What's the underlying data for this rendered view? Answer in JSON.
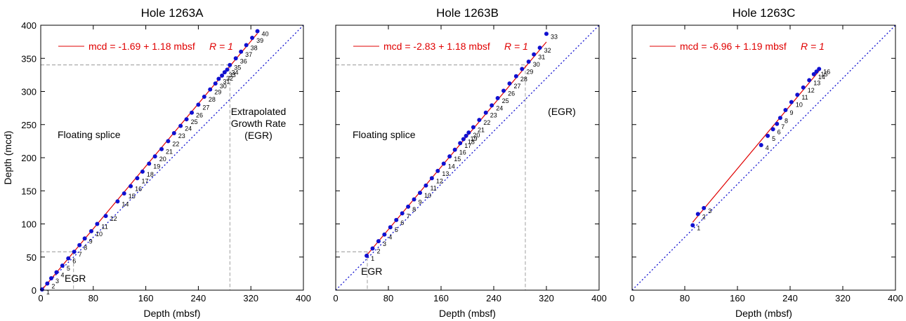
{
  "colors": {
    "fit_line": "#e00000",
    "points": "#1010d0",
    "egr_line": "#1010d0",
    "guide": "#888888",
    "equation": "#e00000"
  },
  "y_axis_label": "Depth (mcd)",
  "chart_data": [
    {
      "type": "scatter",
      "title": "Hole 1263A",
      "xlabel": "Depth (mbsf)",
      "xlim": [
        0,
        400
      ],
      "ylim": [
        0,
        400
      ],
      "xticks": [
        "0",
        "80",
        "160",
        "240",
        "320",
        "400"
      ],
      "yticks": [
        "0",
        "50",
        "100",
        "150",
        "200",
        "250",
        "300",
        "350",
        "400"
      ],
      "equation": "mcd = -1.69 + 1.18 mbsf",
      "r_label": "R = 1",
      "fit": {
        "intercept": -1.69,
        "slope": 1.18
      },
      "egr_line": {
        "intercept": 0,
        "slope": 1
      },
      "annotations": {
        "splice": "Floating splice",
        "egr_low": "EGR",
        "egr_high": [
          "Extrapolated",
          "Growth Rate",
          "(EGR)"
        ]
      },
      "guides": [
        {
          "x": 50,
          "y": 58
        },
        {
          "x": 288,
          "y": 340
        }
      ],
      "points": [
        {
          "x": 2,
          "y": 1,
          "label": "1"
        },
        {
          "x": 10,
          "y": 10,
          "label": "2"
        },
        {
          "x": 16,
          "y": 18,
          "label": "3"
        },
        {
          "x": 24,
          "y": 27,
          "label": "4"
        },
        {
          "x": 33,
          "y": 37,
          "label": "5"
        },
        {
          "x": 42,
          "y": 48,
          "label": "6"
        },
        {
          "x": 51,
          "y": 58,
          "label": "7"
        },
        {
          "x": 59,
          "y": 68,
          "label": "8"
        },
        {
          "x": 67,
          "y": 78,
          "label": "9"
        },
        {
          "x": 77,
          "y": 89,
          "label": "10"
        },
        {
          "x": 86,
          "y": 100,
          "label": "11"
        },
        {
          "x": 99,
          "y": 112,
          "label": "12"
        },
        {
          "x": 117,
          "y": 134,
          "label": "14"
        },
        {
          "x": 127,
          "y": 146,
          "label": "15"
        },
        {
          "x": 137,
          "y": 157,
          "label": "16"
        },
        {
          "x": 147,
          "y": 169,
          "label": "17"
        },
        {
          "x": 155,
          "y": 179,
          "label": "18"
        },
        {
          "x": 165,
          "y": 191,
          "label": "19"
        },
        {
          "x": 174,
          "y": 202,
          "label": "20"
        },
        {
          "x": 184,
          "y": 213,
          "label": "21"
        },
        {
          "x": 194,
          "y": 225,
          "label": "22"
        },
        {
          "x": 203,
          "y": 237,
          "label": "23"
        },
        {
          "x": 213,
          "y": 248,
          "label": "24"
        },
        {
          "x": 222,
          "y": 258,
          "label": "25"
        },
        {
          "x": 230,
          "y": 268,
          "label": "26"
        },
        {
          "x": 240,
          "y": 280,
          "label": "27"
        },
        {
          "x": 249,
          "y": 292,
          "label": "28"
        },
        {
          "x": 258,
          "y": 303,
          "label": "29"
        },
        {
          "x": 266,
          "y": 312,
          "label": "30"
        },
        {
          "x": 271,
          "y": 319,
          "label": "31"
        },
        {
          "x": 276,
          "y": 324,
          "label": "32"
        },
        {
          "x": 280,
          "y": 329,
          "label": "33"
        },
        {
          "x": 284,
          "y": 333,
          "label": "34"
        },
        {
          "x": 288,
          "y": 340,
          "label": "35"
        },
        {
          "x": 297,
          "y": 350,
          "label": "36"
        },
        {
          "x": 305,
          "y": 360,
          "label": "37"
        },
        {
          "x": 313,
          "y": 370,
          "label": "38"
        },
        {
          "x": 322,
          "y": 381,
          "label": "39"
        },
        {
          "x": 330,
          "y": 391,
          "label": "40"
        }
      ]
    },
    {
      "type": "scatter",
      "title": "Hole 1263B",
      "xlabel": "Depth (mbsf)",
      "xlim": [
        0,
        400
      ],
      "ylim": [
        0,
        400
      ],
      "xticks": [
        "0",
        "80",
        "160",
        "240",
        "320",
        "400"
      ],
      "yticks": [],
      "equation": "mcd = -2.83 + 1.18 mbsf",
      "r_label": "R = 1",
      "fit": {
        "intercept": -2.83,
        "slope": 1.18
      },
      "egr_line": {
        "intercept": 0,
        "slope": 1
      },
      "annotations": {
        "splice": "Floating splice",
        "egr_low": "EGR",
        "egr_high": [
          "(EGR)"
        ]
      },
      "guides": [
        {
          "x": 48,
          "y": 58
        },
        {
          "x": 288,
          "y": 340
        }
      ],
      "points": [
        {
          "x": 47,
          "y": 52,
          "label": "1"
        },
        {
          "x": 56,
          "y": 63,
          "label": "2"
        },
        {
          "x": 65,
          "y": 74,
          "label": "3"
        },
        {
          "x": 74,
          "y": 84,
          "label": "4"
        },
        {
          "x": 83,
          "y": 95,
          "label": "5"
        },
        {
          "x": 92,
          "y": 106,
          "label": "6"
        },
        {
          "x": 101,
          "y": 116,
          "label": "7"
        },
        {
          "x": 110,
          "y": 126,
          "label": "8"
        },
        {
          "x": 119,
          "y": 137,
          "label": "9"
        },
        {
          "x": 128,
          "y": 147,
          "label": "10"
        },
        {
          "x": 137,
          "y": 158,
          "label": "11"
        },
        {
          "x": 146,
          "y": 169,
          "label": "12"
        },
        {
          "x": 155,
          "y": 180,
          "label": "13"
        },
        {
          "x": 164,
          "y": 191,
          "label": "14"
        },
        {
          "x": 173,
          "y": 202,
          "label": "15"
        },
        {
          "x": 181,
          "y": 212,
          "label": "16"
        },
        {
          "x": 189,
          "y": 222,
          "label": "17"
        },
        {
          "x": 194,
          "y": 228,
          "label": "18"
        },
        {
          "x": 198,
          "y": 233,
          "label": "19"
        },
        {
          "x": 202,
          "y": 238,
          "label": "20"
        },
        {
          "x": 209,
          "y": 246,
          "label": "21"
        },
        {
          "x": 218,
          "y": 257,
          "label": "22"
        },
        {
          "x": 228,
          "y": 268,
          "label": "23"
        },
        {
          "x": 237,
          "y": 279,
          "label": "24"
        },
        {
          "x": 246,
          "y": 290,
          "label": "25"
        },
        {
          "x": 255,
          "y": 301,
          "label": "26"
        },
        {
          "x": 264,
          "y": 312,
          "label": "27"
        },
        {
          "x": 274,
          "y": 323,
          "label": "28"
        },
        {
          "x": 283,
          "y": 334,
          "label": "29"
        },
        {
          "x": 293,
          "y": 345,
          "label": "30"
        },
        {
          "x": 301,
          "y": 356,
          "label": "31"
        },
        {
          "x": 310,
          "y": 366,
          "label": "32"
        },
        {
          "x": 320,
          "y": 387,
          "label": "33"
        }
      ]
    },
    {
      "type": "scatter",
      "title": "Hole 1263C",
      "xlabel": "Depth (mbsf)",
      "xlim": [
        0,
        400
      ],
      "ylim": [
        0,
        400
      ],
      "xticks": [
        "0",
        "80",
        "160",
        "240",
        "320",
        "400"
      ],
      "yticks": [],
      "equation": "mcd = -6.96 + 1.19 mbsf",
      "r_label": "R = 1",
      "fit": {
        "intercept": -6.96,
        "slope": 1.19
      },
      "egr_line": {
        "intercept": 0,
        "slope": 1
      },
      "annotations": {},
      "guides": [],
      "points": [
        {
          "x": 92,
          "y": 98,
          "label": "1"
        },
        {
          "x": 100,
          "y": 115,
          "label": "2"
        },
        {
          "x": 109,
          "y": 124,
          "label": "3"
        },
        {
          "x": 196,
          "y": 219,
          "label": "4"
        },
        {
          "x": 206,
          "y": 233,
          "label": "5"
        },
        {
          "x": 214,
          "y": 243,
          "label": "6"
        },
        {
          "x": 220,
          "y": 251,
          "label": "7"
        },
        {
          "x": 225,
          "y": 260,
          "label": "8"
        },
        {
          "x": 233,
          "y": 272,
          "label": "9"
        },
        {
          "x": 242,
          "y": 284,
          "label": "10"
        },
        {
          "x": 251,
          "y": 295,
          "label": "11"
        },
        {
          "x": 260,
          "y": 306,
          "label": "12"
        },
        {
          "x": 269,
          "y": 317,
          "label": "13"
        },
        {
          "x": 276,
          "y": 326,
          "label": "14"
        },
        {
          "x": 280,
          "y": 330,
          "label": "15"
        },
        {
          "x": 284,
          "y": 334,
          "label": "16"
        }
      ]
    }
  ]
}
